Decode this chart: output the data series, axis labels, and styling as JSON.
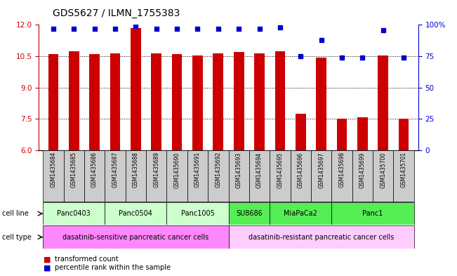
{
  "title": "GDS5627 / ILMN_1755383",
  "samples": [
    "GSM1435684",
    "GSM1435685",
    "GSM1435686",
    "GSM1435687",
    "GSM1435688",
    "GSM1435689",
    "GSM1435690",
    "GSM1435691",
    "GSM1435692",
    "GSM1435693",
    "GSM1435694",
    "GSM1435695",
    "GSM1435696",
    "GSM1435697",
    "GSM1435698",
    "GSM1435699",
    "GSM1435700",
    "GSM1435701"
  ],
  "bar_values": [
    10.6,
    10.75,
    10.6,
    10.65,
    11.85,
    10.65,
    10.6,
    10.55,
    10.65,
    10.7,
    10.65,
    10.75,
    7.75,
    10.45,
    7.5,
    7.6,
    10.55,
    7.5
  ],
  "percentile_values": [
    97,
    97,
    97,
    97,
    99,
    97,
    97,
    97,
    97,
    97,
    97,
    98,
    75,
    88,
    74,
    74,
    96,
    74
  ],
  "ylim_left": [
    6,
    12
  ],
  "ylim_right": [
    0,
    100
  ],
  "yticks_left": [
    6,
    7.5,
    9,
    10.5,
    12
  ],
  "yticks_right": [
    0,
    25,
    50,
    75,
    100
  ],
  "ytick_labels_right": [
    "0",
    "25",
    "50",
    "75",
    "100%"
  ],
  "bar_color": "#cc0000",
  "dot_color": "#0000cc",
  "cell_lines": [
    {
      "label": "Panc0403",
      "start": 0,
      "end": 3,
      "color": "#ccffcc"
    },
    {
      "label": "Panc0504",
      "start": 3,
      "end": 6,
      "color": "#ccffcc"
    },
    {
      "label": "Panc1005",
      "start": 6,
      "end": 9,
      "color": "#ccffcc"
    },
    {
      "label": "SU8686",
      "start": 9,
      "end": 11,
      "color": "#55ee55"
    },
    {
      "label": "MiaPaCa2",
      "start": 11,
      "end": 14,
      "color": "#55ee55"
    },
    {
      "label": "Panc1",
      "start": 14,
      "end": 18,
      "color": "#55ee55"
    }
  ],
  "cell_type_groups": [
    {
      "label": "dasatinib-sensitive pancreatic cancer cells",
      "start": 0,
      "end": 9,
      "color": "#ff88ff"
    },
    {
      "label": "dasatinib-resistant pancreatic cancer cells",
      "start": 9,
      "end": 18,
      "color": "#ffccff"
    }
  ],
  "legend_items": [
    {
      "color": "#cc0000",
      "label": "transformed count"
    },
    {
      "color": "#0000cc",
      "label": "percentile rank within the sample"
    }
  ],
  "bar_width": 0.5,
  "sample_box_color": "#cccccc"
}
